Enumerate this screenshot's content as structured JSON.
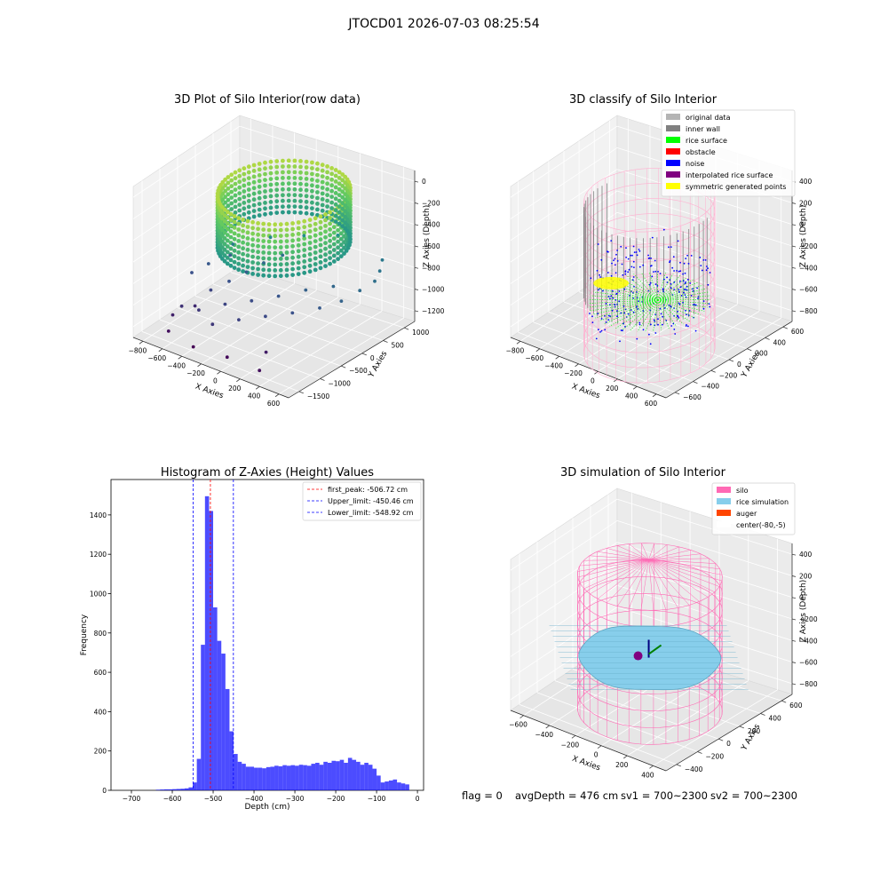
{
  "figure": {
    "suptitle": "JTOCD01 2026-07-03 08:25:54",
    "footer": {
      "flag": "flag = 0",
      "avg_depth": "avgDepth = 476 cm",
      "sv1": "sv1 = 700~2300",
      "sv2": "sv2 = 700~2300"
    }
  },
  "chart_data": [
    {
      "type": "scatter",
      "projection": "3d",
      "title": "3D Plot of Silo Interior(row data)",
      "xlabel": "X Axies",
      "ylabel": "Y Axies",
      "zlabel": "Z Axies (Depth)",
      "x_ticks": [
        "−800",
        "−600",
        "−400",
        "−200",
        "0",
        "200",
        "400",
        "600"
      ],
      "y_ticks": [
        "−1500",
        "−1000",
        "−500",
        "0",
        "500",
        "1000"
      ],
      "z_ticks": [
        "−1200",
        "−1000",
        "−800",
        "−600",
        "−400",
        "−200",
        "0"
      ],
      "xlim": [
        -800,
        600
      ],
      "ylim": [
        -1500,
        1000
      ],
      "zlim": [
        -1200,
        0
      ],
      "colormap": "viridis",
      "grid": true,
      "dense_ring": {
        "center_x": -80,
        "center_y": -5,
        "radius": 430,
        "z_top": -150,
        "z_bottom": -560
      },
      "sparse_points": [
        [
          -600,
          -900,
          -1020
        ],
        [
          -560,
          -700,
          -1050
        ],
        [
          -500,
          -500,
          -950
        ],
        [
          -420,
          -300,
          -900
        ],
        [
          -350,
          -100,
          -850
        ],
        [
          -280,
          100,
          -800
        ],
        [
          -200,
          300,
          -760
        ],
        [
          -640,
          -1000,
          -1080
        ],
        [
          -450,
          -900,
          -1000
        ],
        [
          -300,
          -700,
          -950
        ],
        [
          -150,
          -500,
          -920
        ],
        [
          0,
          -300,
          -880
        ],
        [
          150,
          -100,
          -830
        ],
        [
          300,
          100,
          -800
        ],
        [
          -250,
          -1100,
          -1000
        ],
        [
          -100,
          -900,
          -960
        ],
        [
          50,
          -700,
          -930
        ],
        [
          200,
          -500,
          -900
        ],
        [
          350,
          -300,
          -860
        ],
        [
          450,
          -100,
          -820
        ],
        [
          500,
          150,
          -780
        ],
        [
          520,
          400,
          -760
        ],
        [
          480,
          600,
          -740
        ],
        [
          420,
          800,
          -720
        ],
        [
          -600,
          -1200,
          -1150
        ],
        [
          -380,
          -1200,
          -1200
        ],
        [
          -80,
          -1200,
          -1180
        ],
        [
          180,
          -1000,
          -1100
        ],
        [
          -500,
          0,
          -700
        ],
        [
          -300,
          300,
          -650
        ],
        [
          -100,
          500,
          -620
        ],
        [
          100,
          700,
          -600
        ],
        [
          -700,
          -400,
          -900
        ],
        [
          -650,
          -150,
          -870
        ],
        [
          -560,
          100,
          -830
        ],
        [
          250,
          -1300,
          -1150
        ]
      ]
    },
    {
      "type": "scatter",
      "projection": "3d",
      "title": "3D classify of Silo Interior",
      "xlabel": "X Axies",
      "ylabel": "Y Axies",
      "zlabel": "Z Axies (Depth)",
      "x_ticks": [
        "−800",
        "−600",
        "−400",
        "−200",
        "0",
        "200",
        "400",
        "600"
      ],
      "y_ticks": [
        "−600",
        "−400",
        "−200",
        "0",
        "200",
        "400",
        "600"
      ],
      "z_ticks": [
        "−800",
        "−600",
        "−400",
        "−200",
        "0",
        "200",
        "400"
      ],
      "xlim": [
        -800,
        600
      ],
      "ylim": [
        -600,
        600
      ],
      "zlim": [
        -800,
        400
      ],
      "grid": true,
      "legend_position": "top-right",
      "legend": [
        {
          "label": "original data",
          "color": "#b4b4b4"
        },
        {
          "label": "inner wall",
          "color": "#808080"
        },
        {
          "label": "rice surface",
          "color": "#00ff00"
        },
        {
          "label": "obstacle",
          "color": "#ff0000"
        },
        {
          "label": "noise",
          "color": "#0000ff"
        },
        {
          "label": "interpolated rice surface",
          "color": "#800080"
        },
        {
          "label": "symmetric generated points",
          "color": "#ffff00"
        }
      ],
      "silo_wireframe": {
        "center_x": -80,
        "center_y": -5,
        "radius": 430,
        "z_top": 250,
        "z_bottom": -950,
        "color": "#ffb0d0"
      },
      "inner_wall": {
        "radius": 430,
        "z_top": 200,
        "z_bottom": -500,
        "color": "#808080"
      },
      "rice_surface": {
        "z": -560,
        "radius": 400,
        "color": "#00ff00"
      },
      "yellow_patch": {
        "x": -400,
        "y": 0,
        "z": -520,
        "color": "#ffff00"
      }
    },
    {
      "type": "bar",
      "title": "Histogram of Z-Axies (Height) Values",
      "xlabel": "Depth (cm)",
      "ylabel": "Frequency",
      "xlim": [
        -750,
        15
      ],
      "ylim": [
        0,
        1580
      ],
      "x_ticks": [
        -700,
        -600,
        -500,
        -400,
        -300,
        -200,
        -100,
        0
      ],
      "y_ticks": [
        0,
        200,
        400,
        600,
        800,
        1000,
        1200,
        1400
      ],
      "bin_width": 10,
      "bin_starts": [
        -640,
        -630,
        -620,
        -610,
        -600,
        -590,
        -580,
        -570,
        -560,
        -550,
        -540,
        -530,
        -520,
        -510,
        -500,
        -490,
        -480,
        -470,
        -460,
        -450,
        -440,
        -430,
        -420,
        -410,
        -400,
        -390,
        -380,
        -370,
        -360,
        -350,
        -340,
        -330,
        -320,
        -310,
        -300,
        -290,
        -280,
        -270,
        -260,
        -250,
        -240,
        -230,
        -220,
        -210,
        -200,
        -190,
        -180,
        -170,
        -160,
        -150,
        -140,
        -130,
        -120,
        -110,
        -100,
        -90,
        -80,
        -70,
        -60,
        -50,
        -40,
        -30,
        -20
      ],
      "values": [
        3,
        4,
        5,
        5,
        6,
        7,
        8,
        10,
        15,
        40,
        160,
        740,
        1495,
        1420,
        930,
        760,
        695,
        515,
        300,
        185,
        145,
        135,
        120,
        120,
        115,
        115,
        112,
        118,
        120,
        125,
        122,
        128,
        125,
        128,
        125,
        130,
        128,
        125,
        135,
        140,
        130,
        145,
        140,
        150,
        148,
        155,
        140,
        165,
        155,
        145,
        130,
        140,
        130,
        110,
        75,
        40,
        45,
        50,
        55,
        40,
        35,
        30,
        0
      ],
      "color": "#0000ff",
      "alpha": 0.7,
      "vlines": [
        {
          "label": "first_peak: -506.72 cm",
          "x": -506.72,
          "color": "#ff0000"
        },
        {
          "label": "Upper_limit: -450.46 cm",
          "x": -450.46,
          "color": "#0000ff"
        },
        {
          "label": "Lower_limit: -548.92 cm",
          "x": -548.92,
          "color": "#0000ff"
        }
      ],
      "legend_position": "top-right"
    },
    {
      "type": "surface",
      "projection": "3d",
      "title": "3D simulation of Silo Interior",
      "xlabel": "X Axies",
      "ylabel": "Y Axies",
      "zlabel": "Z Axies (Depth)",
      "x_ticks": [
        "−600",
        "−400",
        "−200",
        "0",
        "200",
        "400"
      ],
      "y_ticks": [
        "−400",
        "−200",
        "0",
        "200",
        "400",
        "600"
      ],
      "z_ticks": [
        "−800",
        "−600",
        "−400",
        "−200",
        "0",
        "200",
        "400"
      ],
      "xlim": [
        -700,
        500
      ],
      "ylim": [
        -600,
        600
      ],
      "zlim": [
        -900,
        450
      ],
      "grid": true,
      "legend_position": "top-right",
      "legend": [
        {
          "label": "silo",
          "color": "#ff69b4"
        },
        {
          "label": "rice simulation",
          "color": "#87ceeb"
        },
        {
          "label": "auger",
          "color": "#ff4500"
        },
        {
          "label": "center(-80,-5)",
          "color": "#ffffff"
        }
      ],
      "silo_wireframe": {
        "center_x": -80,
        "center_y": -5,
        "radius": 430,
        "z_top": 250,
        "z_bottom": -950,
        "color": "#ff69b4"
      },
      "rice_surface": {
        "z": -476,
        "color": "#87ceeb"
      }
    }
  ]
}
